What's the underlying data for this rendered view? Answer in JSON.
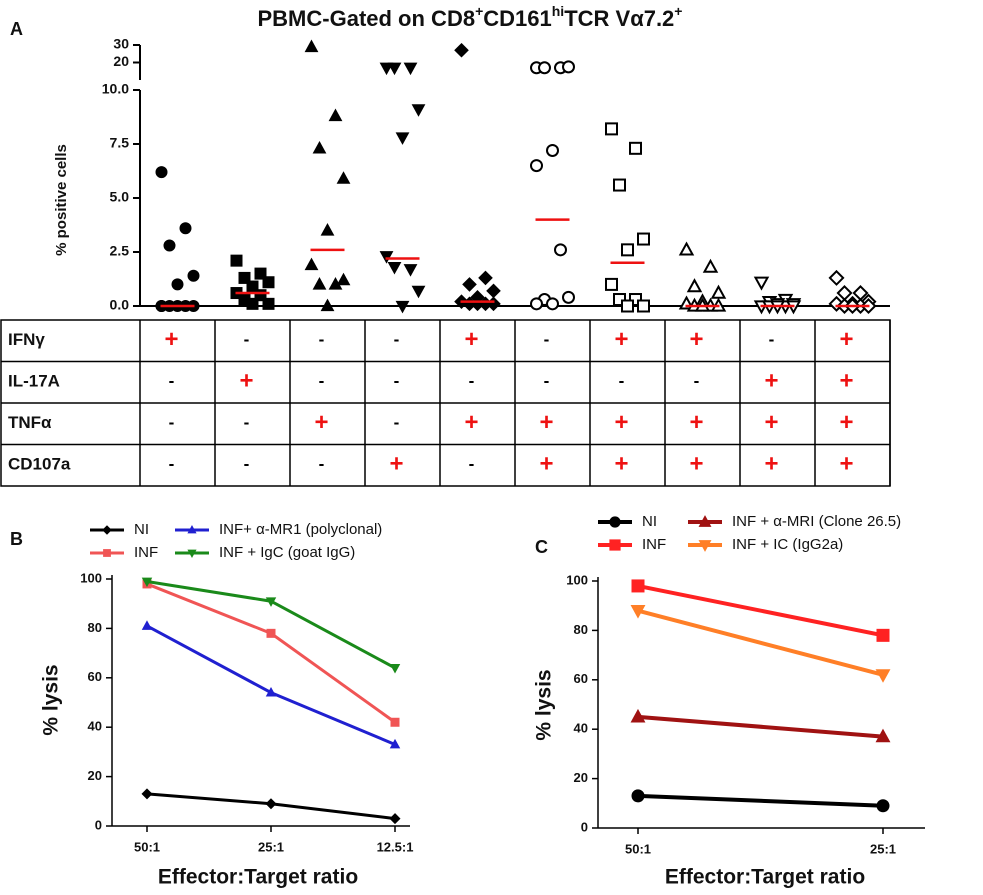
{
  "chart_data": [
    {
      "type": "dotplot",
      "panel": "A",
      "title_parts": [
        {
          "text": "PBMC-Gated on CD8"
        },
        {
          "text": "+",
          "sup": true
        },
        {
          "text": "CD161"
        },
        {
          "text": "hi",
          "sup": true
        },
        {
          "text": "TCR Vα7.2"
        },
        {
          "text": "+",
          "sup": true
        }
      ],
      "y_label": "% positive cells",
      "ylim": [
        0,
        30
      ],
      "ybreak": 10,
      "yticks": [
        {
          "value": 0,
          "label": "0.0"
        },
        2.5,
        {
          "value": 5,
          "label": "5.0"
        },
        7.5,
        {
          "value": 10,
          "label": "10.0"
        },
        20,
        30
      ],
      "median_color": "#ee1111",
      "series": [
        {
          "marker": "circle",
          "filled": true,
          "values": [
            6.2,
            3.6,
            2.8,
            1.4,
            1.0,
            0,
            0,
            0,
            0,
            0,
            0
          ],
          "median": 0
        },
        {
          "marker": "square",
          "filled": true,
          "values": [
            2.1,
            1.5,
            1.3,
            1.1,
            0.9,
            0.6,
            0.5,
            0.3,
            0.1,
            0.1
          ],
          "median": 0.6
        },
        {
          "marker": "triangle",
          "filled": true,
          "values": [
            28.9,
            8.8,
            7.3,
            5.9,
            3.5,
            1.9,
            1.0,
            1.0,
            1.2,
            0
          ],
          "median": 2.6
        },
        {
          "marker": "triangle-down",
          "filled": true,
          "values": [
            17,
            17,
            17,
            9.1,
            7.8,
            2.3,
            1.7,
            1.8,
            0.7,
            0
          ],
          "median": 2.2
        },
        {
          "marker": "diamond",
          "filled": true,
          "values": [
            27,
            1.3,
            1.0,
            0.7,
            0.4,
            0.2,
            0.1,
            0.1,
            0.1,
            0.1
          ],
          "median": 0.2
        },
        {
          "marker": "circle",
          "filled": false,
          "values": [
            17,
            17,
            17,
            17.5,
            7.2,
            6.5,
            2.6,
            0.3,
            0.4,
            0.1,
            0.1
          ],
          "median": 4.0
        },
        {
          "marker": "square",
          "filled": false,
          "values": [
            8.2,
            7.3,
            5.6,
            3.1,
            2.6,
            1.0,
            0.3,
            0.3,
            0,
            0
          ],
          "median": 2.0
        },
        {
          "marker": "triangle",
          "filled": false,
          "values": [
            2.6,
            1.8,
            0.9,
            0.6,
            0.2,
            0.1,
            0,
            0,
            0,
            0
          ],
          "median": 0
        },
        {
          "marker": "triangle-down",
          "filled": false,
          "values": [
            1.1,
            0.3,
            0.2,
            0.1,
            0.1,
            0,
            0,
            0,
            0,
            0
          ],
          "median": 0
        },
        {
          "marker": "diamond",
          "filled": false,
          "values": [
            1.3,
            0.6,
            0.6,
            0.2,
            0.1,
            0.1,
            0,
            0,
            0,
            0
          ],
          "median": 0
        }
      ],
      "table": {
        "rows": [
          {
            "label": "IFNγ",
            "cells": [
              "+",
              "-",
              "-",
              "-",
              "+",
              "-",
              "+",
              "+",
              "-",
              "+"
            ]
          },
          {
            "label": "IL-17A",
            "cells": [
              "-",
              "+",
              "-",
              "-",
              "-",
              "-",
              "-",
              "-",
              "+",
              "+"
            ]
          },
          {
            "label": "TNFα",
            "cells": [
              "-",
              "-",
              "+",
              "-",
              "+",
              "+",
              "+",
              "+",
              "+",
              "+"
            ]
          },
          {
            "label": "CD107a",
            "cells": [
              "-",
              "-",
              "-",
              "+",
              "-",
              "+",
              "+",
              "+",
              "+",
              "+"
            ]
          }
        ]
      }
    },
    {
      "type": "line",
      "panel": "B",
      "x_label": "Effector:Target ratio",
      "y_label": "% lysis",
      "categories": [
        "50:1",
        "25:1",
        "12.5:1"
      ],
      "ylim": [
        0,
        100
      ],
      "yticks": [
        0,
        20,
        40,
        60,
        80,
        100
      ],
      "series": [
        {
          "name": "NI",
          "color": "#000000",
          "marker": "diamond",
          "values": [
            13,
            9,
            3
          ]
        },
        {
          "name": "INF+ α-MR1 (polyclonal)",
          "color": "#2020d0",
          "marker": "triangle",
          "values": [
            81,
            54,
            33
          ]
        },
        {
          "name": "INF",
          "color": "#f05555",
          "marker": "square",
          "values": [
            98,
            78,
            42
          ]
        },
        {
          "name": "INF + IgC (goat IgG)",
          "color": "#1a8a1a",
          "marker": "triangle-down",
          "values": [
            99,
            91,
            64
          ]
        }
      ]
    },
    {
      "type": "line",
      "panel": "C",
      "x_label": "Effector:Target ratio",
      "y_label": "% lysis",
      "categories": [
        "50:1",
        "25:1"
      ],
      "ylim": [
        0,
        100
      ],
      "yticks": [
        0,
        20,
        40,
        60,
        80,
        100
      ],
      "series": [
        {
          "name": "NI",
          "color": "#000000",
          "marker": "circle",
          "values": [
            13,
            9
          ]
        },
        {
          "name": "INF + α-MRI (Clone 26.5)",
          "color": "#a01212",
          "marker": "triangle",
          "values": [
            45,
            37
          ]
        },
        {
          "name": "INF",
          "color": "#ff2222",
          "marker": "square",
          "values": [
            98,
            78
          ]
        },
        {
          "name": "INF + IC (IgG2a)",
          "color": "#ff7f27",
          "marker": "triangle-down",
          "values": [
            88,
            62
          ]
        }
      ]
    }
  ]
}
